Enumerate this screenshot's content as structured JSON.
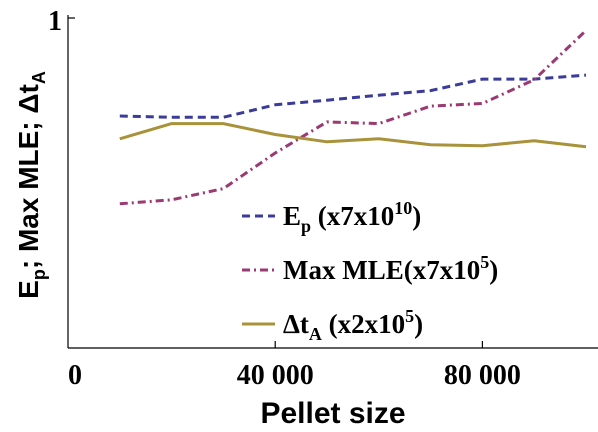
{
  "chart_data": {
    "type": "line",
    "title": "",
    "xlabel": "Pellet size",
    "ylabel_parts": {
      "a": "E",
      "a_sub": "p",
      "b": "; Max MLE; Δt",
      "b_sub": "A"
    },
    "xlim": [
      0,
      100000
    ],
    "ylim": [
      0,
      1
    ],
    "x_ticks": [
      {
        "value": 0,
        "label": "0"
      },
      {
        "value": 40000,
        "label": "40 000"
      },
      {
        "value": 80000,
        "label": "80 000"
      }
    ],
    "y_ticks": [
      {
        "value": 1,
        "label": "1"
      }
    ],
    "grid": false,
    "legend_position": "bottom-right",
    "x": [
      10000,
      20000,
      30000,
      40000,
      50000,
      60000,
      70000,
      80000,
      90000,
      100000
    ],
    "series": [
      {
        "key": "ep",
        "color": "#3b3b9a",
        "dash": "dashed",
        "legend": {
          "main": "E",
          "sub": "p",
          "rest": " (x7x10",
          "sup": "10",
          "end": ")"
        },
        "values": [
          0.703,
          0.699,
          0.699,
          0.737,
          0.751,
          0.766,
          0.78,
          0.815,
          0.815,
          0.827
        ]
      },
      {
        "key": "mle",
        "color": "#9b3a72",
        "dash": "dashdot",
        "legend": {
          "main": "Max MLE(x7x10",
          "sub": "",
          "rest": "",
          "sup": "5",
          "end": ")"
        },
        "values": [
          0.437,
          0.449,
          0.483,
          0.591,
          0.685,
          0.68,
          0.733,
          0.741,
          0.813,
          0.962
        ]
      },
      {
        "key": "dta",
        "color": "#a8923a",
        "dash": "solid",
        "legend": {
          "main": "Δt",
          "sub": "A",
          "rest": " (x2x10",
          "sup": "5",
          "end": ")"
        },
        "values": [
          0.634,
          0.68,
          0.68,
          0.647,
          0.625,
          0.634,
          0.616,
          0.613,
          0.628,
          0.61
        ]
      }
    ]
  }
}
